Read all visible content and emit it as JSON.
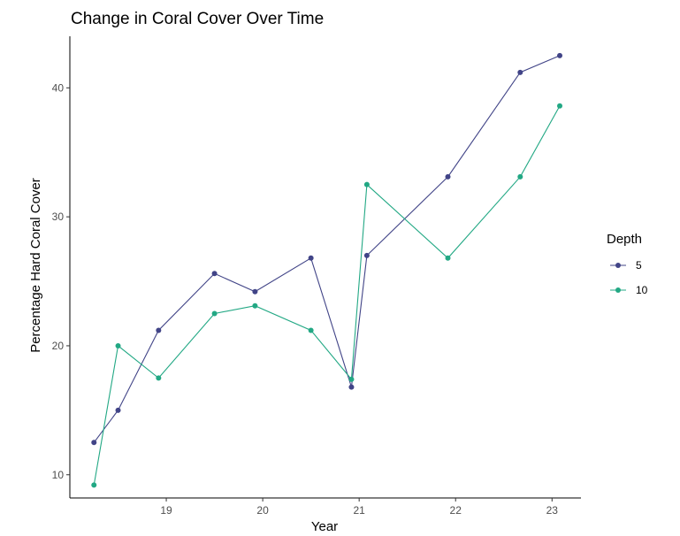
{
  "chart_data": {
    "type": "line",
    "title": "Change in Coral Cover Over Time",
    "xlabel": "Year",
    "ylabel": "Percentage Hard Coral Cover",
    "xlim": [
      18.0,
      23.3
    ],
    "ylim": [
      8.2,
      44.0
    ],
    "xticks": [
      19,
      20,
      21,
      22,
      23
    ],
    "yticks": [
      10,
      20,
      30,
      40
    ],
    "grid": false,
    "legend": {
      "title": "Depth",
      "placement": "right"
    },
    "series": [
      {
        "name": "5",
        "color": "#414487",
        "points": [
          [
            18.25,
            12.5
          ],
          [
            18.5,
            15.0
          ],
          [
            18.92,
            21.2
          ],
          [
            19.5,
            25.6
          ],
          [
            19.92,
            24.2
          ],
          [
            20.5,
            26.8
          ],
          [
            20.92,
            16.8
          ],
          [
            21.08,
            27.0
          ],
          [
            21.92,
            33.1
          ],
          [
            22.67,
            41.2
          ],
          [
            23.08,
            42.5
          ]
        ]
      },
      {
        "name": "10",
        "color": "#22a884",
        "points": [
          [
            18.25,
            9.2
          ],
          [
            18.5,
            20.0
          ],
          [
            18.92,
            17.5
          ],
          [
            19.5,
            22.5
          ],
          [
            19.92,
            23.1
          ],
          [
            20.5,
            21.2
          ],
          [
            20.92,
            17.4
          ],
          [
            21.08,
            32.5
          ],
          [
            21.92,
            26.8
          ],
          [
            22.67,
            33.1
          ],
          [
            23.08,
            38.6
          ]
        ]
      }
    ]
  }
}
